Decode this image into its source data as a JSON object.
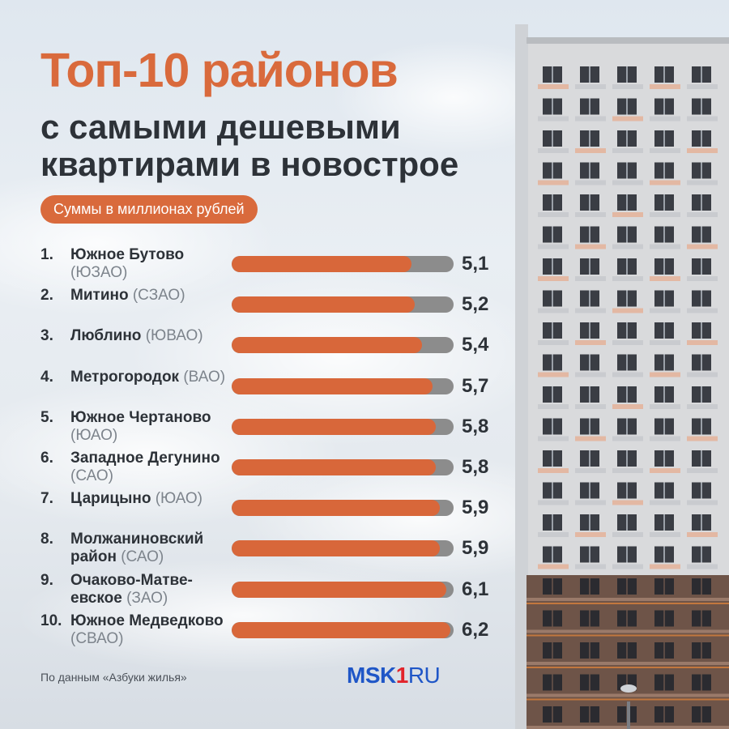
{
  "header": {
    "title": "Топ-10 районов",
    "subtitle": "с самыми дешевыми квартирами в новострое",
    "unit_badge": "Суммы в миллионах рублей"
  },
  "chart_data": {
    "type": "bar",
    "orientation": "horizontal",
    "xlim": [
      0,
      6.3
    ],
    "items": [
      {
        "rank": "1.",
        "name": "Южное Бутово",
        "district": "(ЮЗАО)",
        "value": 5.1,
        "label": "5,1"
      },
      {
        "rank": "2.",
        "name": "Митино",
        "district": "(СЗАО)",
        "value": 5.2,
        "label": "5,2"
      },
      {
        "rank": "3.",
        "name": "Люблино",
        "district": "(ЮВАО)",
        "value": 5.4,
        "label": "5,4"
      },
      {
        "rank": "4.",
        "name": "Метрогородок",
        "district": "(ВАО)",
        "value": 5.7,
        "label": "5,7"
      },
      {
        "rank": "5.",
        "name": "Южное Чертаново",
        "district": "(ЮАО)",
        "value": 5.8,
        "label": "5,8"
      },
      {
        "rank": "6.",
        "name": "Западное Дегунино",
        "district": "(САО)",
        "value": 5.8,
        "label": "5,8"
      },
      {
        "rank": "7.",
        "name": "Царицыно",
        "district": "(ЮАО)",
        "value": 5.9,
        "label": "5,9"
      },
      {
        "rank": "8.",
        "name": "Молжаниновский район",
        "district": "(САО)",
        "value": 5.9,
        "label": "5,9"
      },
      {
        "rank": "9.",
        "name": "Очаково-Матве­евское",
        "district": "(ЗАО)",
        "value": 6.1,
        "label": "6,1"
      },
      {
        "rank": "10.",
        "name": "Южное Медвед­ково",
        "district": "(СВАО)",
        "value": 6.2,
        "label": "6,2"
      }
    ]
  },
  "footer": {
    "source": "По данным «Азбуки жилья»",
    "logo_main": "MSK",
    "logo_accent": "1",
    "logo_suffix": "RU"
  },
  "colors": {
    "accent": "#d96a3c",
    "bar_track": "#8c8c8c",
    "text_dark": "#2d3238",
    "text_muted": "#7d848c",
    "logo_blue": "#1f56c7",
    "logo_red": "#e2242b"
  }
}
